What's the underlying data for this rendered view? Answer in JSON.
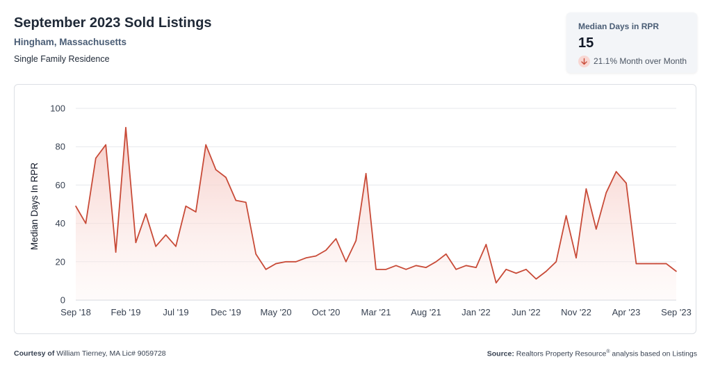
{
  "header": {
    "title": "September 2023 Sold Listings",
    "location": "Hingham, Massachusetts",
    "property_type": "Single Family Residence"
  },
  "stat": {
    "label": "Median Days in RPR",
    "value": "15",
    "change": "21.1% Month over Month",
    "change_direction": "down",
    "change_icon": "arrow-down-icon",
    "change_color": "#c84a37"
  },
  "colors": {
    "line": "#c84a37",
    "fill_top": "#f5c6c0",
    "grid": "#e5e7eb",
    "axis_text": "#374151"
  },
  "chart_data": {
    "type": "area",
    "title": "",
    "xlabel": "",
    "ylabel": "Median Days In RPR",
    "ylim": [
      0,
      100
    ],
    "yticks": [
      0,
      20,
      40,
      60,
      80,
      100
    ],
    "grid": true,
    "x_tick_labels": [
      "Sep '18",
      "Feb '19",
      "Jul '19",
      "Dec '19",
      "May '20",
      "Oct '20",
      "Mar '21",
      "Aug '21",
      "Jan '22",
      "Jun '22",
      "Nov '22",
      "Apr '23",
      "Sep '23"
    ],
    "x_start": "2018-09",
    "x_end": "2023-09",
    "series": [
      {
        "values": [
          49,
          40,
          74,
          81,
          25,
          90,
          30,
          45,
          28,
          34,
          28,
          49,
          46,
          81,
          68,
          64,
          52,
          51,
          24,
          16,
          19,
          20,
          20,
          22,
          23,
          26,
          32,
          20,
          31,
          66,
          16,
          16,
          18,
          16,
          18,
          17,
          20,
          24,
          16,
          18,
          17,
          29,
          9,
          16,
          14,
          16,
          11,
          15,
          20,
          44,
          22,
          58,
          37,
          56,
          67,
          61,
          19,
          19,
          19,
          19,
          15
        ]
      }
    ]
  },
  "footer": {
    "courtesy_label": "Courtesy of",
    "courtesy_text": "William Tierney, MA Lic# 9059728",
    "source_label": "Source:",
    "source_text_1": "Realtors Property Resource",
    "source_reg": "®",
    "source_text_2": " analysis based on Listings"
  }
}
